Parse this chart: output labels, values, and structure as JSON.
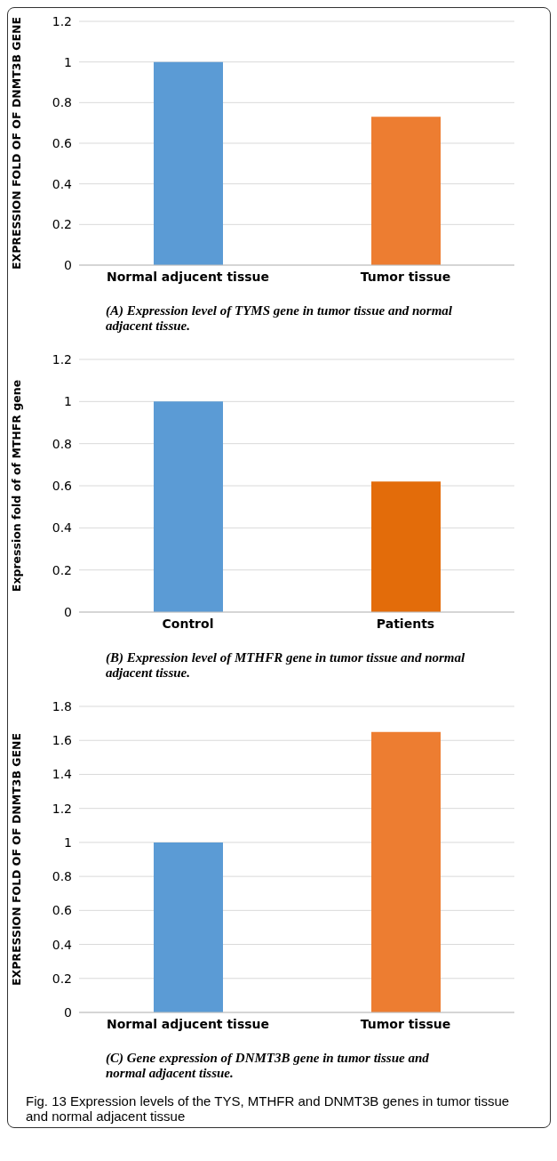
{
  "chart_data": [
    {
      "type": "bar",
      "ylabel": "EXPRESSION FOLD OF OF DNMT3B GENE",
      "categories": [
        "Normal adjucent tissue",
        "Tumor tissue"
      ],
      "values": [
        1,
        0.73
      ],
      "colors": [
        "#5b9bd5",
        "#ed7d31"
      ],
      "ylim": [
        0,
        1.2
      ],
      "yticks": [
        0,
        0.2,
        0.4,
        0.6,
        0.8,
        1,
        1.2
      ],
      "grid": "y",
      "annotations": [
        "(A) Expression level of TYMS gene in tumor tissue and normal adjacent tissue."
      ]
    },
    {
      "type": "bar",
      "ylabel": "Expression fold of of MTHFR gene",
      "categories": [
        "Control",
        "Patients"
      ],
      "values": [
        1,
        0.62
      ],
      "colors": [
        "#5b9bd5",
        "#e36c0a"
      ],
      "ylim": [
        0,
        1.2
      ],
      "yticks": [
        0,
        0.2,
        0.4,
        0.6,
        0.8,
        1,
        1.2
      ],
      "grid": "y",
      "annotations": [
        "(B) Expression level of MTHFR gene in tumor tissue and normal adjacent tissue."
      ]
    },
    {
      "type": "bar",
      "ylabel": "EXPRESSION FOLD OF OF DNMT3B GENE",
      "categories": [
        "Normal adjucent tissue",
        "Tumor tissue"
      ],
      "values": [
        1,
        1.65
      ],
      "colors": [
        "#5b9bd5",
        "#ed7d31"
      ],
      "ylim": [
        0,
        1.8
      ],
      "yticks": [
        0,
        0.2,
        0.4,
        0.6,
        0.8,
        1,
        1.2,
        1.4,
        1.6,
        1.8
      ],
      "grid": "y",
      "annotations": [
        "(C) Gene expression of DNMT3B gene in tumor tissue and normal adjacent tissue.",
        "Fig. 13 Expression levels of the TYS, MTHFR and DNMT3B genes in tumor tissue and normal adjacent tissue"
      ]
    }
  ]
}
